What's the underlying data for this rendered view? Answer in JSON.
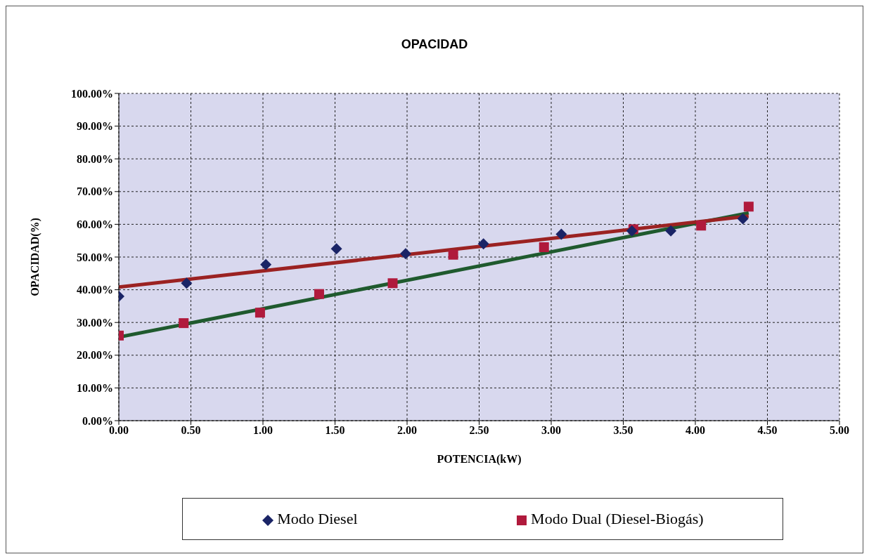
{
  "chart_data": {
    "type": "scatter",
    "title": "OPACIDAD",
    "xlabel": "POTENCIA(kW)",
    "ylabel": "OPACIDAD(%)",
    "xlim": [
      0,
      5
    ],
    "xticks": [
      {
        "value": 0,
        "label": "0.00"
      },
      {
        "value": 0.5,
        "label": "0.50"
      },
      {
        "value": 1,
        "label": "1.00"
      },
      {
        "value": 1.5,
        "label": "1.50"
      },
      {
        "value": 2,
        "label": "2.00"
      },
      {
        "value": 2.5,
        "label": "2.50"
      },
      {
        "value": 3,
        "label": "3.00"
      },
      {
        "value": 3.5,
        "label": "3.50"
      },
      {
        "value": 4,
        "label": "4.00"
      },
      {
        "value": 4.5,
        "label": "4.50"
      },
      {
        "value": 5,
        "label": "5.00"
      }
    ],
    "ylim": [
      0,
      100
    ],
    "yticks": [
      {
        "value": 0,
        "label": "0.00%"
      },
      {
        "value": 10,
        "label": "10.00%"
      },
      {
        "value": 20,
        "label": "20.00%"
      },
      {
        "value": 30,
        "label": "30.00%"
      },
      {
        "value": 40,
        "label": "40.00%"
      },
      {
        "value": 50,
        "label": "50.00%"
      },
      {
        "value": 60,
        "label": "60.00%"
      },
      {
        "value": 70,
        "label": "70.00%"
      },
      {
        "value": 80,
        "label": "80.00%"
      },
      {
        "value": 90,
        "label": "90.00%"
      },
      {
        "value": 100,
        "label": "100.00%"
      }
    ],
    "grid": true,
    "legend": "bottom",
    "series": [
      {
        "name": "Modo Diesel",
        "color": "#1a2466",
        "marker": "diamond",
        "x": [
          0,
          0.47,
          1.02,
          1.51,
          1.99,
          2.53,
          3.07,
          3.56,
          3.83,
          4.33
        ],
        "values": [
          38,
          42,
          47.7,
          52.5,
          51,
          54,
          57,
          58,
          58,
          61.7
        ]
      },
      {
        "name": "Modo Dual (Diesel-Biogás)",
        "color": "#b01a3c",
        "marker": "square",
        "x": [
          0,
          0.45,
          0.98,
          1.39,
          1.9,
          2.32,
          2.95,
          3.57,
          4.04,
          4.37
        ],
        "values": [
          26,
          29.8,
          33,
          38.7,
          42,
          50.7,
          53,
          58.5,
          59.6,
          65.4
        ]
      },
      {
        "type": "line",
        "color": "#9b2222",
        "marker": "none",
        "x": [
          0,
          4.37
        ],
        "values": [
          40.8,
          62.5
        ]
      },
      {
        "type": "line",
        "color": "#1f5a2e",
        "marker": "none",
        "x": [
          0,
          4.37
        ],
        "values": [
          25.5,
          63.5
        ]
      }
    ]
  }
}
